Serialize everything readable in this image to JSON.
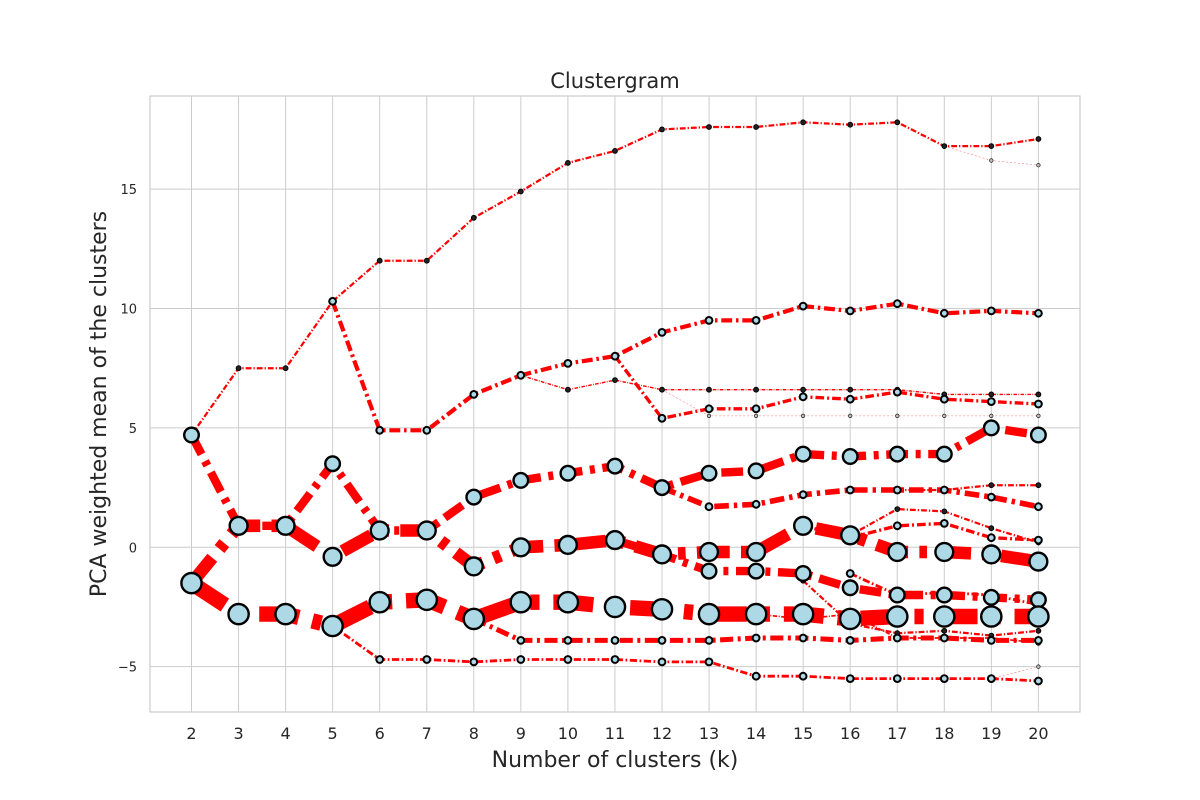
{
  "chart_data": {
    "type": "line",
    "title": "Clustergram",
    "xlabel": "Number of clusters (k)",
    "ylabel": "PCA weighted mean of the clusters",
    "x": [
      2,
      3,
      4,
      5,
      6,
      7,
      8,
      9,
      10,
      11,
      12,
      13,
      14,
      15,
      16,
      17,
      18,
      19,
      20
    ],
    "xticks": [
      "2",
      "3",
      "4",
      "5",
      "6",
      "7",
      "8",
      "9",
      "10",
      "11",
      "12",
      "13",
      "14",
      "15",
      "16",
      "17",
      "18",
      "19",
      "20"
    ],
    "yticks": [
      "−5",
      "0",
      "5",
      "10",
      "15"
    ],
    "ylim": [
      -6.9,
      18.9
    ],
    "grid": true,
    "line_color": "#ff0000",
    "marker_fill": "#add8e6",
    "marker_edge": "#000000",
    "paths": [
      {
        "points": [
          [
            2,
            4.7
          ],
          [
            3,
            7.5
          ],
          [
            4,
            7.5
          ],
          [
            5,
            10.3
          ],
          [
            6,
            12.0
          ],
          [
            7,
            12.0
          ],
          [
            8,
            13.8
          ],
          [
            9,
            14.9
          ],
          [
            10,
            16.1
          ],
          [
            11,
            16.6
          ],
          [
            12,
            17.5
          ],
          [
            13,
            17.6
          ],
          [
            14,
            17.6
          ],
          [
            15,
            17.8
          ],
          [
            16,
            17.7
          ],
          [
            17,
            17.8
          ],
          [
            18,
            16.8
          ],
          [
            19,
            16.8
          ],
          [
            20,
            17.1
          ]
        ],
        "weight": 0.08
      },
      {
        "points": [
          [
            18,
            16.8
          ],
          [
            19,
            16.2
          ],
          [
            20,
            16.0
          ]
        ],
        "weight": 0.02
      },
      {
        "points": [
          [
            5,
            10.3
          ],
          [
            6,
            4.9
          ],
          [
            7,
            4.9
          ],
          [
            8,
            6.4
          ],
          [
            9,
            7.2
          ],
          [
            10,
            7.7
          ],
          [
            11,
            8.0
          ],
          [
            12,
            9.0
          ],
          [
            13,
            9.5
          ],
          [
            14,
            9.5
          ],
          [
            15,
            10.1
          ],
          [
            16,
            9.9
          ],
          [
            17,
            10.2
          ],
          [
            18,
            9.8
          ],
          [
            19,
            9.9
          ],
          [
            20,
            9.8
          ]
        ],
        "weight": 0.15
      },
      {
        "points": [
          [
            9,
            7.2
          ],
          [
            10,
            6.6
          ],
          [
            11,
            7.0
          ],
          [
            12,
            6.6
          ],
          [
            13,
            6.6
          ],
          [
            14,
            6.6
          ],
          [
            15,
            6.6
          ],
          [
            16,
            6.6
          ],
          [
            17,
            6.6
          ],
          [
            18,
            6.4
          ],
          [
            19,
            6.4
          ],
          [
            20,
            6.4
          ]
        ],
        "weight": 0.05
      },
      {
        "points": [
          [
            12,
            6.6
          ],
          [
            13,
            5.5
          ],
          [
            14,
            5.5
          ],
          [
            15,
            5.5
          ],
          [
            16,
            5.5
          ],
          [
            17,
            5.5
          ],
          [
            18,
            5.5
          ],
          [
            19,
            5.5
          ],
          [
            20,
            5.5
          ]
        ],
        "weight": 0.02
      },
      {
        "points": [
          [
            11,
            8.0
          ],
          [
            12,
            5.4
          ],
          [
            13,
            5.8
          ],
          [
            14,
            5.8
          ],
          [
            15,
            6.3
          ],
          [
            16,
            6.2
          ],
          [
            17,
            6.5
          ],
          [
            18,
            6.2
          ],
          [
            19,
            6.1
          ],
          [
            20,
            6.0
          ]
        ],
        "weight": 0.12
      },
      {
        "points": [
          [
            2,
            4.7
          ],
          [
            3,
            0.9
          ],
          [
            4,
            0.9
          ],
          [
            5,
            3.5
          ],
          [
            6,
            0.7
          ],
          [
            7,
            0.7
          ],
          [
            8,
            2.1
          ],
          [
            9,
            2.8
          ],
          [
            10,
            3.1
          ],
          [
            11,
            3.4
          ],
          [
            12,
            2.5
          ],
          [
            13,
            3.1
          ],
          [
            14,
            3.2
          ],
          [
            15,
            3.9
          ],
          [
            16,
            3.8
          ],
          [
            17,
            3.9
          ],
          [
            18,
            3.9
          ],
          [
            19,
            5.0
          ],
          [
            20,
            4.7
          ]
        ],
        "weight": 0.3
      },
      {
        "points": [
          [
            12,
            2.5
          ],
          [
            13,
            1.7
          ],
          [
            14,
            1.8
          ],
          [
            15,
            2.2
          ],
          [
            16,
            2.4
          ],
          [
            17,
            2.4
          ],
          [
            18,
            2.4
          ],
          [
            19,
            2.1
          ],
          [
            20,
            1.7
          ]
        ],
        "weight": 0.2
      },
      {
        "points": [
          [
            2,
            -1.5
          ],
          [
            3,
            0.9
          ],
          [
            4,
            0.9
          ],
          [
            5,
            -0.4
          ],
          [
            6,
            0.7
          ],
          [
            7,
            0.7
          ],
          [
            8,
            -0.8
          ],
          [
            9,
            0.0
          ],
          [
            10,
            0.1
          ],
          [
            11,
            0.3
          ],
          [
            12,
            -0.3
          ],
          [
            13,
            -0.2
          ],
          [
            14,
            -0.2
          ],
          [
            15,
            0.9
          ],
          [
            16,
            0.5
          ],
          [
            17,
            -0.2
          ],
          [
            18,
            -0.2
          ],
          [
            19,
            -0.3
          ],
          [
            20,
            -0.6
          ]
        ],
        "weight": 0.45
      },
      {
        "points": [
          [
            11,
            0.3
          ],
          [
            12,
            -0.3
          ],
          [
            13,
            -1.0
          ],
          [
            14,
            -1.0
          ],
          [
            15,
            -1.1
          ],
          [
            16,
            -1.7
          ],
          [
            17,
            -2.0
          ],
          [
            18,
            -2.0
          ],
          [
            19,
            -2.1
          ],
          [
            20,
            -2.2
          ]
        ],
        "weight": 0.3
      },
      {
        "points": [
          [
            2,
            -1.5
          ],
          [
            3,
            -2.8
          ],
          [
            4,
            -2.8
          ],
          [
            5,
            -3.3
          ],
          [
            6,
            -2.3
          ],
          [
            7,
            -2.2
          ],
          [
            8,
            -3.0
          ],
          [
            9,
            -2.3
          ],
          [
            10,
            -2.3
          ],
          [
            11,
            -2.5
          ],
          [
            12,
            -2.6
          ],
          [
            13,
            -2.8
          ],
          [
            14,
            -2.8
          ],
          [
            15,
            -2.8
          ],
          [
            16,
            -3.0
          ],
          [
            17,
            -2.9
          ],
          [
            18,
            -2.9
          ],
          [
            19,
            -2.9
          ],
          [
            20,
            -2.9
          ]
        ],
        "weight": 0.55
      },
      {
        "points": [
          [
            8,
            -3.0
          ],
          [
            9,
            -3.9
          ],
          [
            10,
            -3.9
          ],
          [
            11,
            -3.9
          ],
          [
            12,
            -3.9
          ],
          [
            13,
            -3.9
          ],
          [
            14,
            -3.8
          ],
          [
            15,
            -3.8
          ],
          [
            16,
            -3.9
          ],
          [
            17,
            -3.8
          ],
          [
            18,
            -3.8
          ],
          [
            19,
            -3.9
          ],
          [
            20,
            -3.9
          ]
        ],
        "weight": 0.18
      },
      {
        "points": [
          [
            5,
            -3.3
          ],
          [
            6,
            -4.7
          ],
          [
            7,
            -4.7
          ],
          [
            8,
            -4.8
          ],
          [
            9,
            -4.7
          ],
          [
            10,
            -4.7
          ],
          [
            11,
            -4.7
          ],
          [
            12,
            -4.8
          ],
          [
            13,
            -4.8
          ],
          [
            14,
            -5.4
          ],
          [
            15,
            -5.4
          ],
          [
            16,
            -5.5
          ],
          [
            17,
            -5.5
          ],
          [
            18,
            -5.5
          ],
          [
            19,
            -5.5
          ],
          [
            20,
            -5.6
          ]
        ],
        "weight": 0.1
      },
      {
        "points": [
          [
            19,
            -5.5
          ],
          [
            20,
            -5.0
          ]
        ],
        "weight": 0.02
      },
      {
        "points": [
          [
            15,
            0.9
          ],
          [
            16,
            0.4
          ],
          [
            17,
            0.9
          ],
          [
            18,
            1.0
          ],
          [
            19,
            0.4
          ],
          [
            20,
            0.3
          ]
        ],
        "weight": 0.12
      },
      {
        "points": [
          [
            16,
            0.5
          ],
          [
            17,
            1.6
          ],
          [
            18,
            1.5
          ],
          [
            19,
            0.8
          ],
          [
            20,
            0.2
          ]
        ],
        "weight": 0.08
      },
      {
        "points": [
          [
            17,
            2.4
          ],
          [
            18,
            2.4
          ],
          [
            19,
            2.6
          ],
          [
            20,
            2.6
          ]
        ],
        "weight": 0.08
      },
      {
        "points": [
          [
            16,
            -1.1
          ],
          [
            17,
            -2.0
          ],
          [
            18,
            -1.9
          ],
          [
            19,
            -2.0
          ],
          [
            20,
            -2.4
          ]
        ],
        "weight": 0.1
      },
      {
        "points": [
          [
            15,
            -1.4
          ],
          [
            16,
            -3.2
          ],
          [
            17,
            -3.6
          ],
          [
            18,
            -3.5
          ],
          [
            19,
            -3.7
          ],
          [
            20,
            -3.5
          ]
        ],
        "weight": 0.08
      },
      {
        "points": [
          [
            14,
            -2.8
          ],
          [
            15,
            -3.0
          ],
          [
            16,
            -2.8
          ],
          [
            17,
            -3.8
          ],
          [
            18,
            -3.8
          ],
          [
            19,
            -3.8
          ],
          [
            20,
            -4.0
          ]
        ],
        "weight": 0.06
      }
    ]
  }
}
